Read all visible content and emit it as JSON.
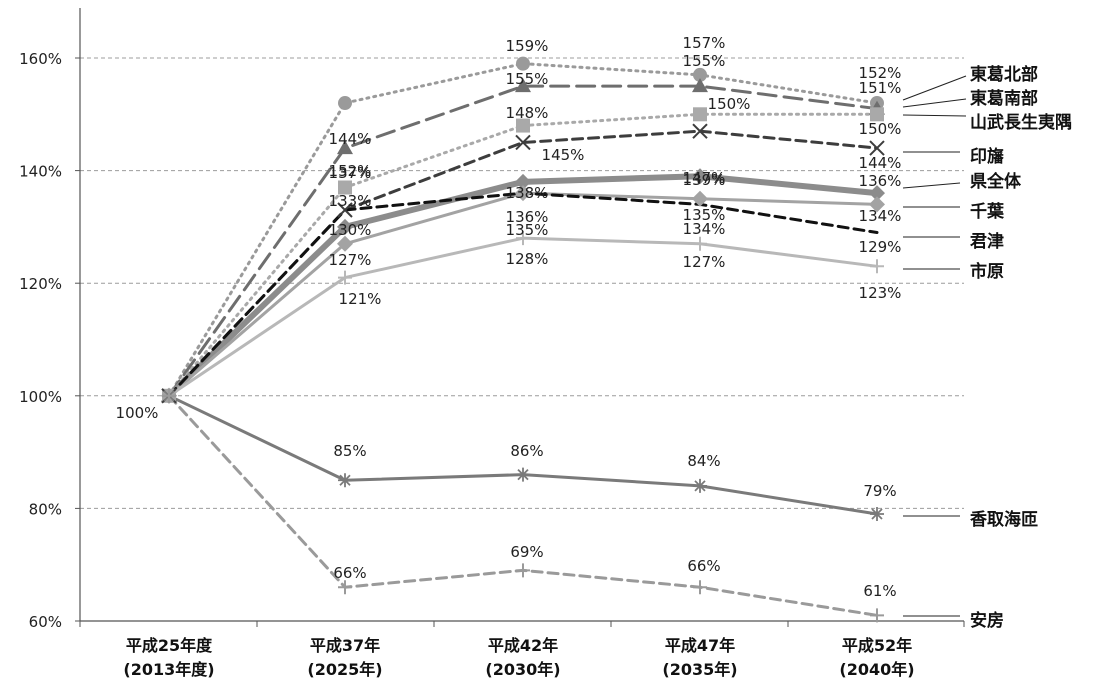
{
  "chart_data": {
    "type": "line",
    "categories": [
      [
        "平成25年度",
        "(2013年度)"
      ],
      [
        "平成37年",
        "(2025年)"
      ],
      [
        "平成42年",
        "(2030年)"
      ],
      [
        "平成47年",
        "(2035年)"
      ],
      [
        "平成52年",
        "(2040年)"
      ]
    ],
    "ylim": [
      60,
      160
    ],
    "y_ticks": [
      60,
      80,
      100,
      120,
      140,
      160
    ],
    "y_tick_format": "{}%",
    "grid": "horizontal dashed",
    "legend": "right (labels beside line ends)",
    "series": [
      {
        "name": "東葛北部",
        "values": [
          100,
          152,
          159,
          157,
          152
        ],
        "color": "#9a9a9a",
        "dash": "dot",
        "marker": "circle"
      },
      {
        "name": "東葛南部",
        "values": [
          100,
          144,
          155,
          155,
          151
        ],
        "color": "#6e6e6e",
        "dash": "longdash",
        "marker": "triangle"
      },
      {
        "name": "山武長生夷隅",
        "values": [
          100,
          137,
          148,
          150,
          150
        ],
        "color": "#a9a9a9",
        "dash": "dot",
        "marker": "square"
      },
      {
        "name": "印旛",
        "values": [
          100,
          133,
          145,
          147,
          144
        ],
        "color": "#3d3d3d",
        "dash": "dash",
        "marker": "x"
      },
      {
        "name": "県全体",
        "values": [
          100,
          130,
          138,
          139,
          136
        ],
        "color": "#8c8c8c",
        "dash": "solid",
        "marker": "diamond",
        "width": 6
      },
      {
        "name": "千葉",
        "values": [
          100,
          127,
          136,
          135,
          134
        ],
        "color": "#a3a3a3",
        "dash": "solid",
        "marker": "diamond"
      },
      {
        "name": "君津",
        "values": [
          100,
          133,
          136,
          134,
          129
        ],
        "color": "#111111",
        "dash": "dash",
        "marker": "none"
      },
      {
        "name": "市原",
        "values": [
          100,
          121,
          128,
          127,
          123
        ],
        "color": "#b8b8b8",
        "dash": "solid",
        "marker": "plus"
      },
      {
        "name": "香取海匝",
        "values": [
          100,
          85,
          86,
          84,
          79
        ],
        "color": "#7a7a7a",
        "dash": "solid",
        "marker": "asterisk"
      },
      {
        "name": "安房",
        "values": [
          100,
          66,
          69,
          66,
          61
        ],
        "color": "#9a9a9a",
        "dash": "dash",
        "marker": "plus"
      }
    ],
    "data_labels": [
      {
        "text": "100%",
        "x": 0,
        "y": 100
      },
      {
        "text": "152%",
        "x": 1,
        "y": 152
      },
      {
        "text": "144%",
        "x": 1,
        "y": 144
      },
      {
        "text": "137%",
        "x": 1,
        "y": 137
      },
      {
        "text": "133%",
        "x": 1,
        "y": 133
      },
      {
        "text": "130%",
        "x": 1,
        "y": 130
      },
      {
        "text": "127%",
        "x": 1,
        "y": 127
      },
      {
        "text": "121%",
        "x": 1,
        "y": 121
      },
      {
        "text": "85%",
        "x": 1,
        "y": 85
      },
      {
        "text": "66%",
        "x": 1,
        "y": 66
      },
      {
        "text": "159%",
        "x": 2,
        "y": 159
      },
      {
        "text": "155%",
        "x": 2,
        "y": 155
      },
      {
        "text": "148%",
        "x": 2,
        "y": 148
      },
      {
        "text": "145%",
        "x": 2,
        "y": 145
      },
      {
        "text": "138%",
        "x": 2,
        "y": 138
      },
      {
        "text": "136%",
        "x": 2,
        "y": 136
      },
      {
        "text": "135%",
        "x": 2,
        "y": 135
      },
      {
        "text": "128%",
        "x": 2,
        "y": 128
      },
      {
        "text": "86%",
        "x": 2,
        "y": 86
      },
      {
        "text": "69%",
        "x": 2,
        "y": 69
      },
      {
        "text": "157%",
        "x": 3,
        "y": 157
      },
      {
        "text": "155%",
        "x": 3,
        "y": 155
      },
      {
        "text": "150%",
        "x": 3,
        "y": 150
      },
      {
        "text": "147%",
        "x": 3,
        "y": 147
      },
      {
        "text": "139%",
        "x": 3,
        "y": 139
      },
      {
        "text": "135%",
        "x": 3,
        "y": 135
      },
      {
        "text": "134%",
        "x": 3,
        "y": 134
      },
      {
        "text": "127%",
        "x": 3,
        "y": 127
      },
      {
        "text": "84%",
        "x": 3,
        "y": 84
      },
      {
        "text": "66%",
        "x": 3,
        "y": 66
      },
      {
        "text": "152%",
        "x": 4,
        "y": 152
      },
      {
        "text": "151%",
        "x": 4,
        "y": 151
      },
      {
        "text": "150%",
        "x": 4,
        "y": 150
      },
      {
        "text": "144%",
        "x": 4,
        "y": 144
      },
      {
        "text": "136%",
        "x": 4,
        "y": 136
      },
      {
        "text": "134%",
        "x": 4,
        "y": 134
      },
      {
        "text": "129%",
        "x": 4,
        "y": 129
      },
      {
        "text": "123%",
        "x": 4,
        "y": 123
      },
      {
        "text": "79%",
        "x": 4,
        "y": 79
      },
      {
        "text": "61%",
        "x": 4,
        "y": 61
      }
    ]
  }
}
